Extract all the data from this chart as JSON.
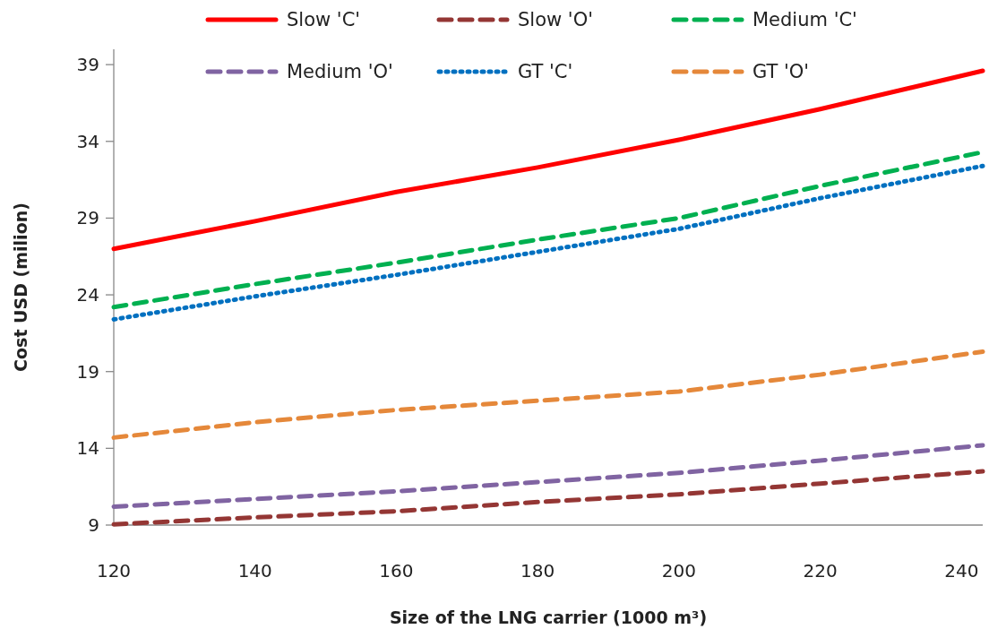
{
  "chart_data": {
    "type": "line",
    "xlabel": "Size of the LNG carrier (1000 m³)",
    "ylabel": "Cost  USD (milion)",
    "x": [
      120,
      140,
      160,
      180,
      200,
      220,
      243
    ],
    "xlim": [
      120,
      243
    ],
    "xticks": [
      120,
      140,
      160,
      180,
      200,
      220,
      240
    ],
    "ylim": [
      9,
      40
    ],
    "yticks": [
      9,
      14,
      19,
      24,
      29,
      34,
      39
    ],
    "grid": false,
    "legend": "top",
    "marker": "none",
    "series": [
      {
        "name": "Slow 'C'",
        "color": "#ff0000",
        "line_style": "solid",
        "values": [
          27.0,
          28.8,
          30.7,
          32.3,
          34.1,
          36.1,
          38.6
        ]
      },
      {
        "name": "Slow 'O'",
        "color": "#943634",
        "line_style": "dashed",
        "values": [
          9.05,
          9.5,
          9.9,
          10.5,
          11.0,
          11.7,
          12.5
        ]
      },
      {
        "name": "Medium 'C'",
        "color": "#00b050",
        "line_style": "dashed",
        "values": [
          23.2,
          24.7,
          26.1,
          27.6,
          29.0,
          31.1,
          33.3
        ]
      },
      {
        "name": "Medium 'O'",
        "color": "#8064a2",
        "line_style": "dashed",
        "values": [
          10.2,
          10.7,
          11.2,
          11.8,
          12.4,
          13.2,
          14.2
        ]
      },
      {
        "name": "GT 'C'",
        "color": "#0070c0",
        "line_style": "dotted",
        "values": [
          22.4,
          23.9,
          25.3,
          26.8,
          28.3,
          30.3,
          32.4
        ]
      },
      {
        "name": "GT 'O'",
        "color": "#e5883a",
        "line_style": "dashed",
        "values": [
          14.7,
          15.7,
          16.5,
          17.1,
          17.7,
          18.8,
          20.3
        ]
      }
    ]
  }
}
